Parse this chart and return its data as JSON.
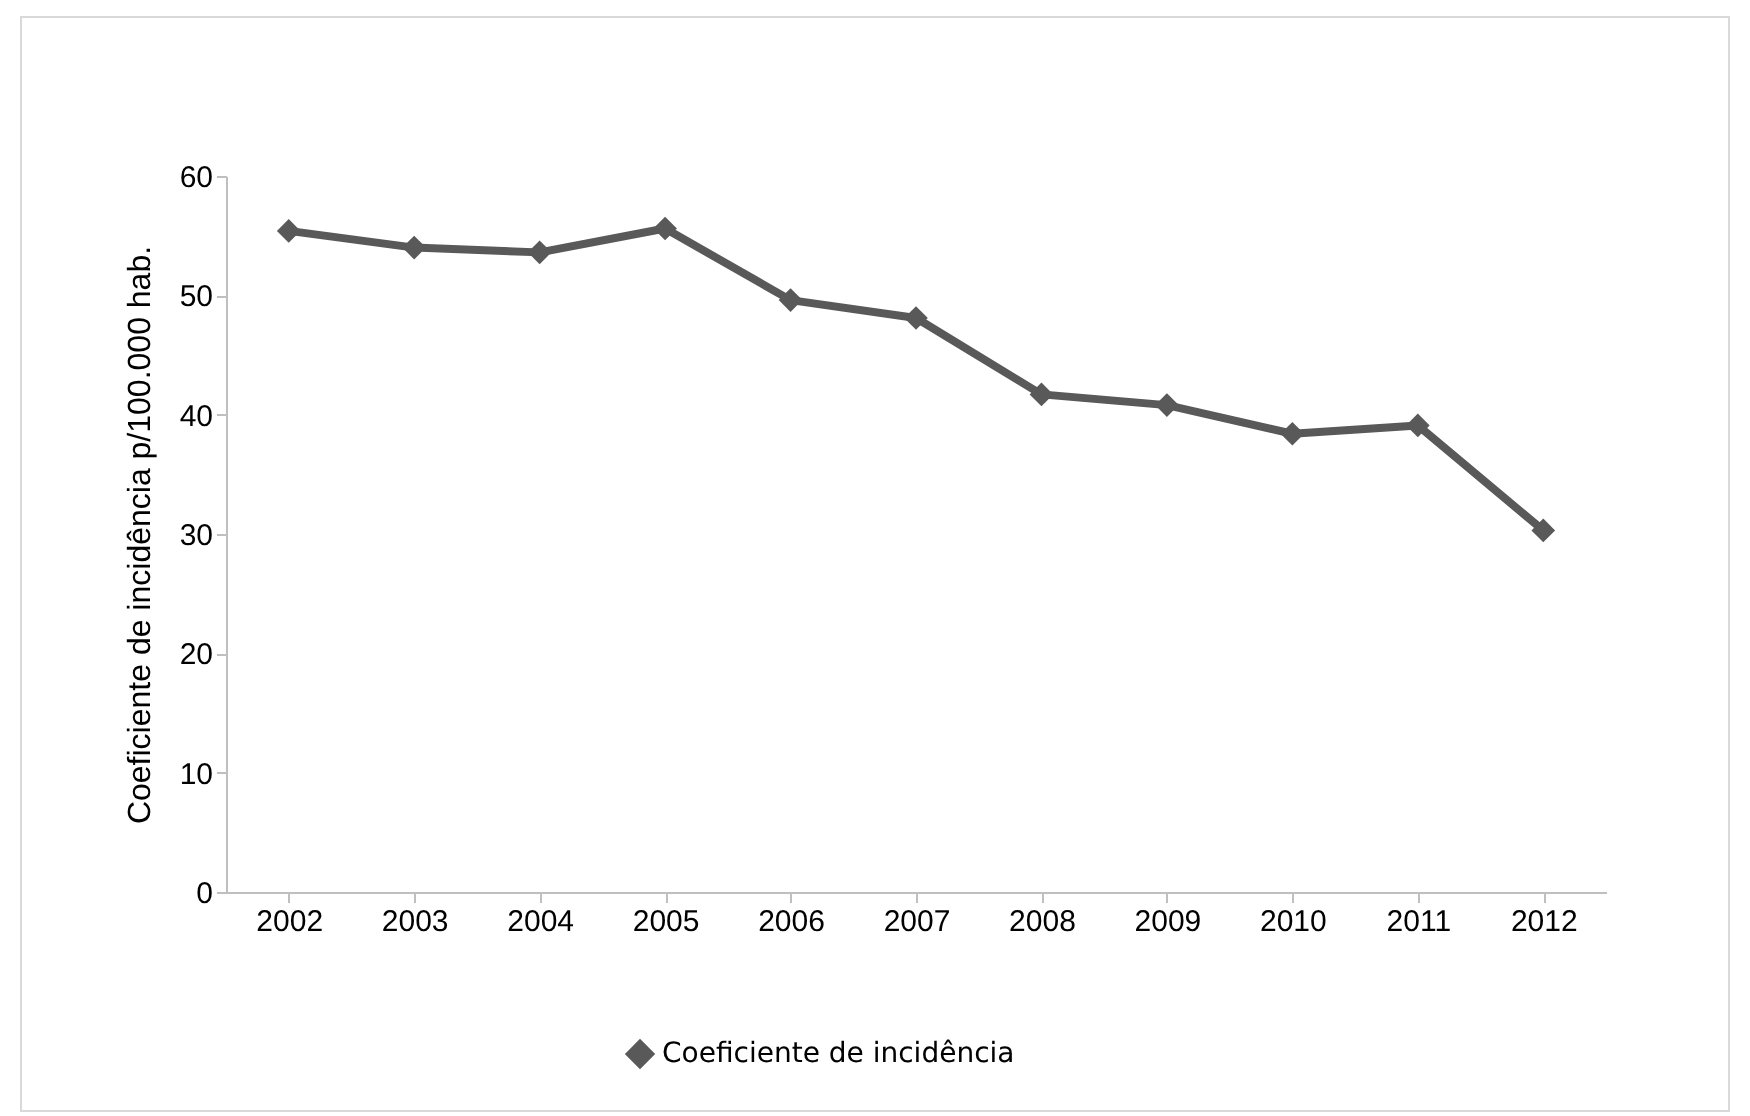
{
  "chart_data": {
    "type": "line",
    "ylabel": "Coeficiente de incidência p/100.000 hab.",
    "categories": [
      "2002",
      "2003",
      "2004",
      "2005",
      "2006",
      "2007",
      "2008",
      "2009",
      "2010",
      "2011",
      "2012"
    ],
    "series": [
      {
        "name": "Coeficiente de incidência",
        "color": "#595959",
        "values": [
          55.4,
          54.0,
          53.6,
          55.6,
          49.6,
          48.1,
          41.7,
          40.8,
          38.4,
          39.1,
          30.3
        ]
      }
    ],
    "ylim": [
      0,
      60
    ],
    "yticks": [
      0,
      10,
      20,
      30,
      40,
      50,
      60
    ],
    "grid": false,
    "legend": "bottom",
    "marker": "diamond",
    "line_style": "solid"
  }
}
